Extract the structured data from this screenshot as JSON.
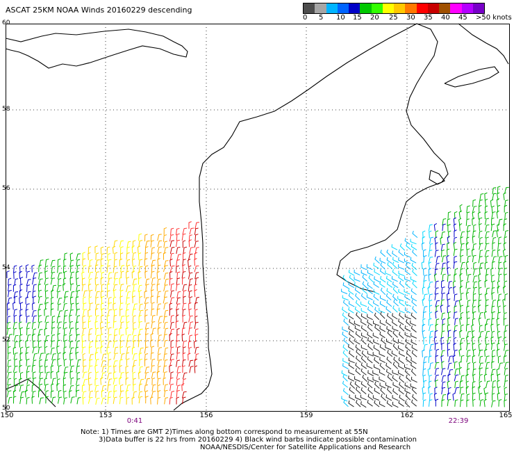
{
  "title": "ASCAT 25KM NOAA Winds 20160229 descending",
  "legend": {
    "colors": [
      "#4d4d4d",
      "#a6a6a6",
      "#00b4ff",
      "#0064ff",
      "#0000c8",
      "#00c800",
      "#32ff00",
      "#ffff00",
      "#ffc800",
      "#ff7800",
      "#ff0000",
      "#c80000",
      "#a05000",
      "#ff00ff",
      "#b400ff",
      "#7800c8"
    ],
    "ticks": [
      "0",
      "5",
      "10",
      "15",
      "20",
      "25",
      "30",
      "35",
      "40",
      "45",
      ">50 knots"
    ]
  },
  "axes": {
    "lat_labels": [
      "60",
      "58",
      "56",
      "54",
      "52",
      "50"
    ],
    "lon_labels": [
      "150",
      "153",
      "156",
      "159",
      "162",
      "165"
    ]
  },
  "pass_times": [
    "0:41",
    "22:39"
  ],
  "note_lines": [
    "Note: 1) Times are GMT 2)Times along bottom correspond to measurement at 55N",
    "3)Data buffer is 22 hrs from 20160229 4) Black wind barbs indicate possible contamination",
    "NOAA/NESDIS/Center for Satellite Applications and Research"
  ]
}
